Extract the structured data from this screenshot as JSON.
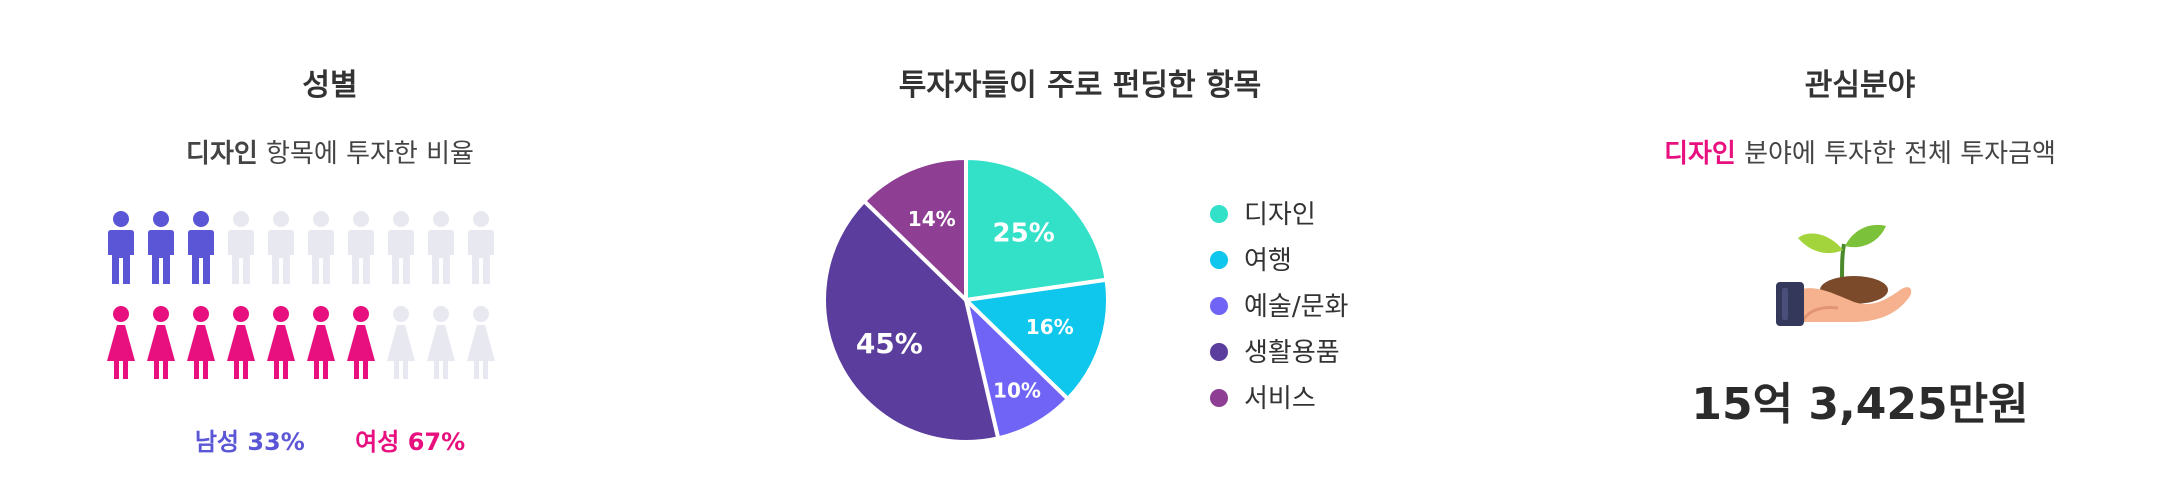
{
  "gender": {
    "title": "성별",
    "subtitle_bold": "디자인",
    "subtitle_rest": " 항목에 투자한 비율",
    "male_label": "남성",
    "male_pct": "33%",
    "female_label": "여성",
    "female_pct": "67%",
    "male_fraction": 0.33,
    "female_fraction": 0.67,
    "icons_per_row": 10,
    "male_color": "#5b56d6",
    "female_color": "#e8107f",
    "inactive_color": "#e8e9f0"
  },
  "chart_data": {
    "type": "pie",
    "title": "투자자들이 주로 펀딩한 항목",
    "categories": [
      "디자인",
      "여행",
      "예술/문화",
      "생활용품",
      "서비스"
    ],
    "values": [
      25,
      16,
      10,
      45,
      14
    ],
    "labels": [
      "25%",
      "16%",
      "10%",
      "45%",
      "14%"
    ],
    "colors": [
      "#33e0c8",
      "#0fc6ec",
      "#6f64f5",
      "#5a3d9c",
      "#8e3f94"
    ],
    "legend_position": "right"
  },
  "interest": {
    "title": "관심분야",
    "subtitle_highlight": "디자인",
    "subtitle_rest": " 분야에 투자한 전체 투자금액",
    "amount": "15억 3,425만원",
    "icon": "hand-sprout-icon",
    "highlight_color": "#e8107f"
  }
}
